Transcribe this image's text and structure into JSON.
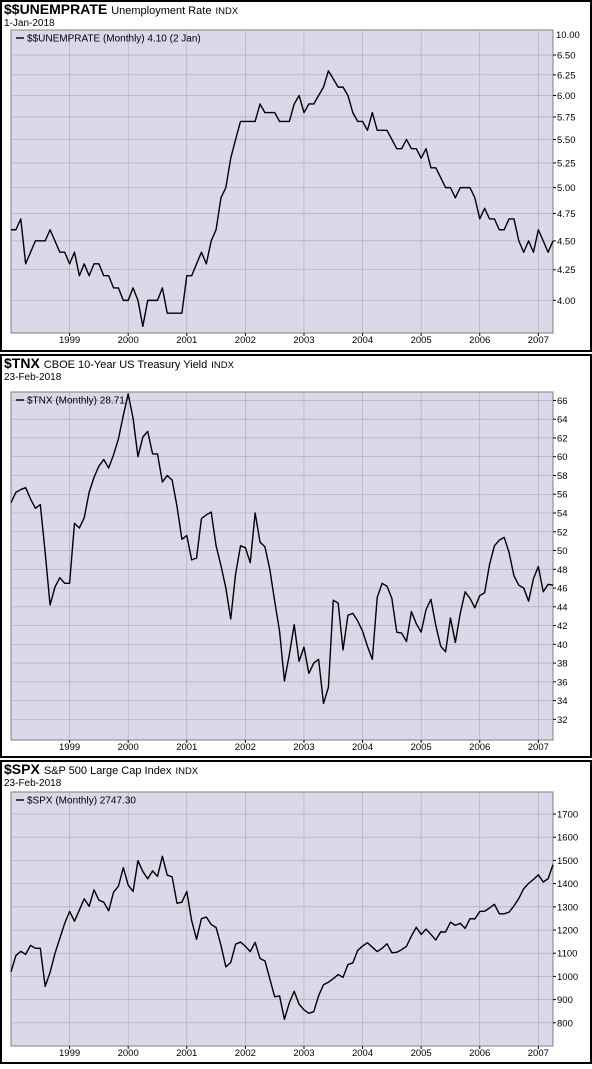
{
  "chart_data": [
    {
      "type": "line",
      "symbol": "$$UNEMPRATE",
      "title": "Unemployment Rate",
      "exchange": "INDX",
      "date": "1-Jan-2018",
      "categories": [
        null,
        null,
        null,
        null,
        null,
        null,
        null,
        null,
        null,
        null,
        null,
        null,
        "1999",
        null,
        null,
        null,
        null,
        null,
        null,
        null,
        null,
        null,
        null,
        null,
        "2000",
        null,
        null,
        null,
        null,
        null,
        null,
        null,
        null,
        null,
        null,
        null,
        "2001",
        null,
        null,
        null,
        null,
        null,
        null,
        null,
        null,
        null,
        null,
        null,
        "2002",
        null,
        null,
        null,
        null,
        null,
        null,
        null,
        null,
        null,
        null,
        null,
        "2003",
        null,
        null,
        null,
        null,
        null,
        null,
        null,
        null,
        null,
        null,
        null,
        "2004",
        null,
        null,
        null,
        null,
        null,
        null,
        null,
        null,
        null,
        null,
        null,
        "2005",
        null,
        null,
        null,
        null,
        null,
        null,
        null,
        null,
        null,
        null,
        null,
        "2006",
        null,
        null,
        null,
        null,
        null,
        null,
        null,
        null,
        null,
        null,
        null,
        "2007",
        null,
        null,
        null
      ],
      "series": [
        {
          "name": "$$UNEMPRATE (Monthly) 4.10 (2 Jan)",
          "color": "#000000",
          "values": [
            4.6,
            4.6,
            4.7,
            4.3,
            4.4,
            4.5,
            4.5,
            4.5,
            4.6,
            4.5,
            4.4,
            4.4,
            4.3,
            4.4,
            4.2,
            4.3,
            4.2,
            4.3,
            4.3,
            4.2,
            4.2,
            4.1,
            4.1,
            4.0,
            4.0,
            4.1,
            4.0,
            3.8,
            4.0,
            4.0,
            4.0,
            4.1,
            3.9,
            3.9,
            3.9,
            3.9,
            4.2,
            4.2,
            4.3,
            4.4,
            4.3,
            4.5,
            4.6,
            4.9,
            5.0,
            5.3,
            5.5,
            5.7,
            5.7,
            5.7,
            5.7,
            5.9,
            5.8,
            5.8,
            5.8,
            5.7,
            5.7,
            5.7,
            5.9,
            6.0,
            5.8,
            5.9,
            5.9,
            6.0,
            6.1,
            6.3,
            6.2,
            6.1,
            6.1,
            6.0,
            5.8,
            5.7,
            5.7,
            5.6,
            5.8,
            5.6,
            5.6,
            5.6,
            5.5,
            5.4,
            5.4,
            5.5,
            5.4,
            5.4,
            5.3,
            5.4,
            5.2,
            5.2,
            5.1,
            5.0,
            5.0,
            4.9,
            5.0,
            5.0,
            5.0,
            4.9,
            4.7,
            4.8,
            4.7,
            4.7,
            4.6,
            4.6,
            4.7,
            4.7,
            4.5,
            4.4,
            4.5,
            4.4,
            4.6,
            4.5,
            4.4,
            4.5
          ]
        }
      ],
      "ylim": [
        3.75,
        6.83
      ],
      "log_scale": true,
      "yticks": [
        {
          "value": 4,
          "label": "4.00"
        },
        4.25,
        {
          "value": 4.5,
          "label": "4.50"
        },
        4.75,
        {
          "value": 5,
          "label": "5.00"
        },
        5.25,
        {
          "value": 5.5,
          "label": "5.50"
        },
        5.75,
        {
          "value": 6,
          "label": "6.00"
        },
        6.25,
        {
          "value": 6.5,
          "label": "6.50"
        }
      ],
      "y_top_label": "10.00",
      "grid": true
    },
    {
      "type": "line",
      "symbol": "$TNX",
      "title": "CBOE 10-Year US Treasury Yield",
      "exchange": "INDX",
      "date": "23-Feb-2018",
      "categories": [
        null,
        null,
        null,
        null,
        null,
        null,
        null,
        null,
        null,
        null,
        null,
        null,
        "1999",
        null,
        null,
        null,
        null,
        null,
        null,
        null,
        null,
        null,
        null,
        null,
        "2000",
        null,
        null,
        null,
        null,
        null,
        null,
        null,
        null,
        null,
        null,
        null,
        "2001",
        null,
        null,
        null,
        null,
        null,
        null,
        null,
        null,
        null,
        null,
        null,
        "2002",
        null,
        null,
        null,
        null,
        null,
        null,
        null,
        null,
        null,
        null,
        null,
        "2003",
        null,
        null,
        null,
        null,
        null,
        null,
        null,
        null,
        null,
        null,
        null,
        "2004",
        null,
        null,
        null,
        null,
        null,
        null,
        null,
        null,
        null,
        null,
        null,
        "2005",
        null,
        null,
        null,
        null,
        null,
        null,
        null,
        null,
        null,
        null,
        null,
        "2006",
        null,
        null,
        null,
        null,
        null,
        null,
        null,
        null,
        null,
        null,
        null,
        "2007",
        null,
        null,
        null
      ],
      "series": [
        {
          "name": "$TNX (Monthly) 28.71",
          "color": "#000000",
          "values": [
            55.1,
            56.2,
            56.5,
            56.7,
            55.5,
            54.5,
            54.9,
            49.8,
            44.2,
            46.1,
            47.1,
            46.5,
            46.5,
            52.9,
            52.4,
            53.5,
            56.2,
            57.8,
            59.0,
            59.7,
            58.8,
            60.2,
            61.9,
            64.4,
            66.7,
            64.1,
            60.0,
            62.1,
            62.7,
            60.3,
            60.3,
            57.3,
            58.0,
            57.5,
            54.7,
            51.2,
            51.6,
            49.0,
            49.2,
            53.4,
            53.8,
            54.1,
            50.5,
            48.4,
            46.0,
            42.7,
            47.5,
            50.5,
            50.3,
            48.7,
            54.0,
            50.9,
            50.4,
            48.0,
            44.6,
            41.4,
            36.1,
            38.9,
            42.1,
            38.2,
            39.7,
            36.9,
            38.0,
            38.4,
            33.7,
            35.4,
            44.7,
            44.4,
            39.4,
            43.1,
            43.3,
            42.5,
            41.4,
            39.8,
            38.4,
            45.0,
            46.5,
            46.2,
            44.9,
            41.3,
            41.2,
            40.3,
            43.5,
            42.2,
            41.3,
            43.7,
            44.8,
            42.0,
            39.8,
            39.2,
            42.8,
            40.2,
            43.3,
            45.6,
            44.9,
            43.9,
            45.2,
            45.5,
            48.5,
            50.5,
            51.1,
            51.4,
            49.8,
            47.3,
            46.3,
            46.0,
            44.6,
            47.0,
            48.3,
            45.6,
            46.4,
            46.3
          ]
        }
      ],
      "ylim": [
        29.8,
        66.9
      ],
      "log_scale": false,
      "yticks": [
        32,
        34,
        36,
        38,
        40,
        42,
        44,
        46,
        48,
        50,
        52,
        54,
        56,
        58,
        60,
        62,
        64,
        66
      ],
      "grid": true
    },
    {
      "type": "line",
      "symbol": "$SPX",
      "title": "S&P 500 Large Cap Index",
      "exchange": "INDX",
      "date": "23-Feb-2018",
      "categories": [
        null,
        null,
        null,
        null,
        null,
        null,
        null,
        null,
        null,
        null,
        null,
        null,
        "1999",
        null,
        null,
        null,
        null,
        null,
        null,
        null,
        null,
        null,
        null,
        null,
        "2000",
        null,
        null,
        null,
        null,
        null,
        null,
        null,
        null,
        null,
        null,
        null,
        "2001",
        null,
        null,
        null,
        null,
        null,
        null,
        null,
        null,
        null,
        null,
        null,
        "2002",
        null,
        null,
        null,
        null,
        null,
        null,
        null,
        null,
        null,
        null,
        null,
        "2003",
        null,
        null,
        null,
        null,
        null,
        null,
        null,
        null,
        null,
        null,
        null,
        "2004",
        null,
        null,
        null,
        null,
        null,
        null,
        null,
        null,
        null,
        null,
        null,
        "2005",
        null,
        null,
        null,
        null,
        null,
        null,
        null,
        null,
        null,
        null,
        null,
        "2006",
        null,
        null,
        null,
        null,
        null,
        null,
        null,
        null,
        null,
        null,
        null,
        "2007",
        null,
        null,
        null
      ],
      "series": [
        {
          "name": "$SPX (Monthly) 2747.30",
          "color": "#000000",
          "values": [
            1020,
            1090,
            1108,
            1095,
            1134,
            1121,
            1121,
            957,
            1017,
            1099,
            1164,
            1229,
            1280,
            1238,
            1286,
            1335,
            1302,
            1373,
            1329,
            1320,
            1283,
            1363,
            1389,
            1469,
            1394,
            1366,
            1499,
            1452,
            1421,
            1455,
            1431,
            1518,
            1437,
            1429,
            1315,
            1320,
            1366,
            1240,
            1160,
            1249,
            1256,
            1224,
            1211,
            1134,
            1041,
            1060,
            1139,
            1148,
            1130,
            1107,
            1147,
            1077,
            1067,
            990,
            912,
            916,
            815,
            886,
            936,
            880,
            856,
            841,
            848,
            917,
            964,
            975,
            990,
            1008,
            996,
            1051,
            1058,
            1112,
            1131,
            1145,
            1126,
            1107,
            1121,
            1141,
            1102,
            1104,
            1115,
            1130,
            1174,
            1212,
            1181,
            1204,
            1181,
            1157,
            1192,
            1191,
            1234,
            1220,
            1229,
            1207,
            1249,
            1248,
            1280,
            1281,
            1295,
            1311,
            1270,
            1270,
            1277,
            1304,
            1336,
            1378,
            1401,
            1418,
            1438,
            1407,
            1421,
            1482
          ]
        }
      ],
      "ylim": [
        700,
        1795
      ],
      "log_scale": false,
      "yticks": [
        800,
        900,
        1000,
        1100,
        1200,
        1300,
        1400,
        1500,
        1600,
        1700
      ],
      "grid": true
    }
  ]
}
